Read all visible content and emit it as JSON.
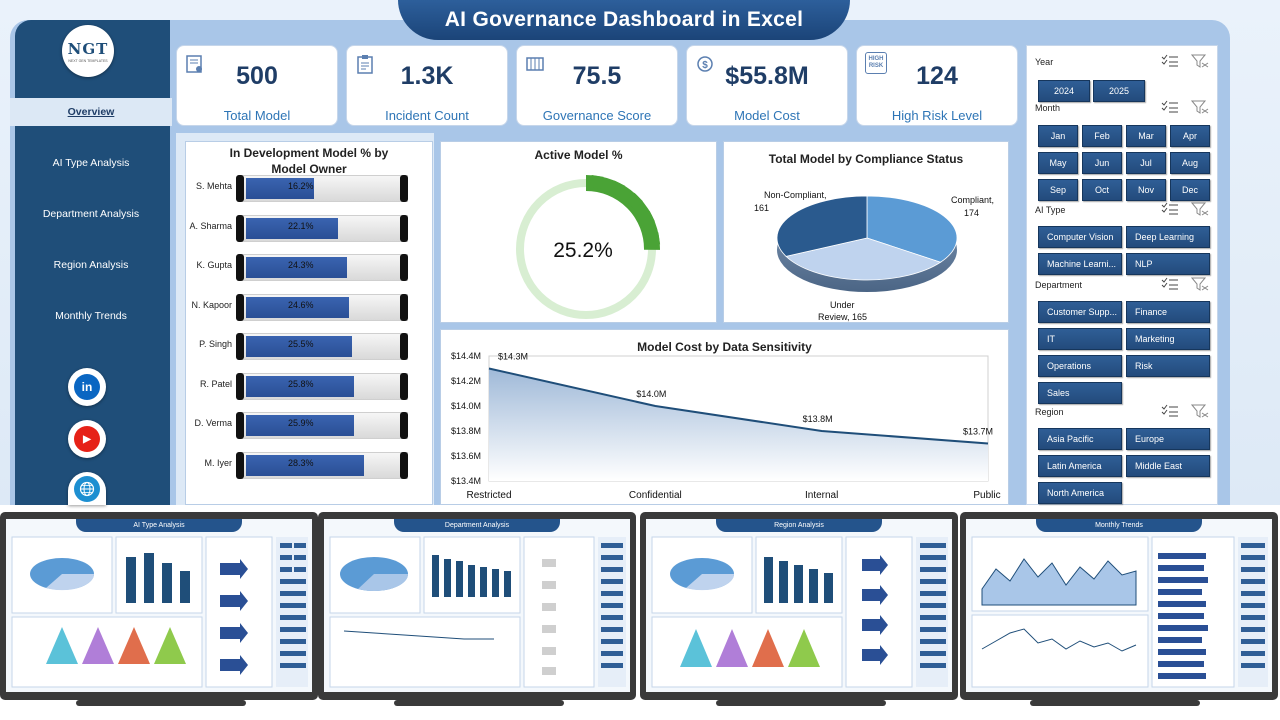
{
  "title": "AI Governance Dashboard in Excel",
  "logo": {
    "text": "NGT",
    "subtext": "NEXT GEN TEMPLATES"
  },
  "nav": [
    {
      "label": "Overview",
      "active": true
    },
    {
      "label": "AI Type Analysis",
      "active": false
    },
    {
      "label": "Department Analysis",
      "active": false
    },
    {
      "label": "Region Analysis",
      "active": false
    },
    {
      "label": "Monthly Trends",
      "active": false
    }
  ],
  "social": [
    {
      "icon": "linkedin-icon",
      "glyph": "in",
      "color": "#0a66c2"
    },
    {
      "icon": "youtube-icon",
      "glyph": "▶",
      "color": "#e62117"
    },
    {
      "icon": "globe-icon",
      "glyph": "🌐",
      "color": "#1d8fd1"
    }
  ],
  "kpis": [
    {
      "value": "500",
      "label": "Total Model",
      "icon": "model-icon"
    },
    {
      "value": "1.3K",
      "label": "Incident Count",
      "icon": "clipboard-icon"
    },
    {
      "value": "75.5",
      "label": "Governance Score",
      "icon": "score-icon"
    },
    {
      "value": "$55.8M",
      "label": "Model Cost",
      "icon": "money-icon"
    },
    {
      "value": "124",
      "label": "High Risk Level",
      "icon": "high-risk-icon",
      "icon_text": "HIGH RISK"
    }
  ],
  "owner_chart": {
    "title": "In Development Model % by Model Owner",
    "owners": [
      {
        "name": "S. Mehta",
        "value": 16.2,
        "label": "16.2%"
      },
      {
        "name": "A. Sharma",
        "value": 22.1,
        "label": "22.1%"
      },
      {
        "name": "K. Gupta",
        "value": 24.3,
        "label": "24.3%"
      },
      {
        "name": "N. Kapoor",
        "value": 24.6,
        "label": "24.6%"
      },
      {
        "name": "P. Singh",
        "value": 25.5,
        "label": "25.5%"
      },
      {
        "name": "R. Patel",
        "value": 25.8,
        "label": "25.8%"
      },
      {
        "name": "D. Verma",
        "value": 25.9,
        "label": "25.9%"
      },
      {
        "name": "M. Iyer",
        "value": 28.3,
        "label": "28.3%"
      }
    ]
  },
  "active_model": {
    "title": "Active Model %",
    "value": 25.2,
    "label": "25.2%"
  },
  "compliance_chart": {
    "title": "Total Model by Compliance Status",
    "slices": [
      {
        "name": "Compliant",
        "value": 174,
        "label": "Compliant,",
        "count": "174",
        "color": "#5b9bd5"
      },
      {
        "name": "Under Review",
        "value": 165,
        "label": "Under",
        "label2": "Review, 165",
        "color": "#bfd3ee"
      },
      {
        "name": "Non-Compliant",
        "value": 161,
        "label": "Non-Compliant,",
        "count": "161",
        "color": "#2a5a8e"
      }
    ]
  },
  "cost_chart": {
    "title": "Model Cost by Data Sensitivity",
    "categories": [
      "Restricted",
      "Confidential",
      "Internal",
      "Public"
    ],
    "values": [
      14.3,
      14.0,
      13.8,
      13.7
    ],
    "value_labels": [
      "$14.3M",
      "$14.0M",
      "$13.8M",
      "$13.7M"
    ],
    "ylim": [
      13.4,
      14.4
    ],
    "y_ticks": [
      {
        "value": 14.4,
        "label": "$14.4M"
      },
      {
        "value": 14.2,
        "label": "$14.2M"
      },
      {
        "value": 14.0,
        "label": "$14.0M"
      },
      {
        "value": 13.8,
        "label": "$13.8M"
      },
      {
        "value": 13.6,
        "label": "$13.6M"
      },
      {
        "value": 13.4,
        "label": "$13.4M"
      }
    ]
  },
  "slicer": {
    "year": {
      "label": "Year",
      "items": [
        "2024",
        "2025"
      ]
    },
    "month": {
      "label": "Month",
      "items": [
        "Jan",
        "Feb",
        "Mar",
        "Apr",
        "May",
        "Jun",
        "Jul",
        "Aug",
        "Sep",
        "Oct",
        "Nov",
        "Dec"
      ]
    },
    "ai_type": {
      "label": "AI Type",
      "items": [
        "Computer Vision",
        "Deep Learning",
        "Machine Learni...",
        "NLP"
      ]
    },
    "department": {
      "label": "Department",
      "items": [
        "Customer Supp...",
        "Finance",
        "IT",
        "Marketing",
        "Operations",
        "Risk",
        "Sales"
      ]
    },
    "region": {
      "label": "Region",
      "items": [
        "Asia Pacific",
        "Europe",
        "Latin America",
        "Middle East",
        "North America"
      ]
    }
  },
  "monitors": [
    {
      "title": "AI Type Analysis"
    },
    {
      "title": "Department Analysis"
    },
    {
      "title": "Region Analysis"
    },
    {
      "title": "Monthly Trends"
    }
  ]
}
